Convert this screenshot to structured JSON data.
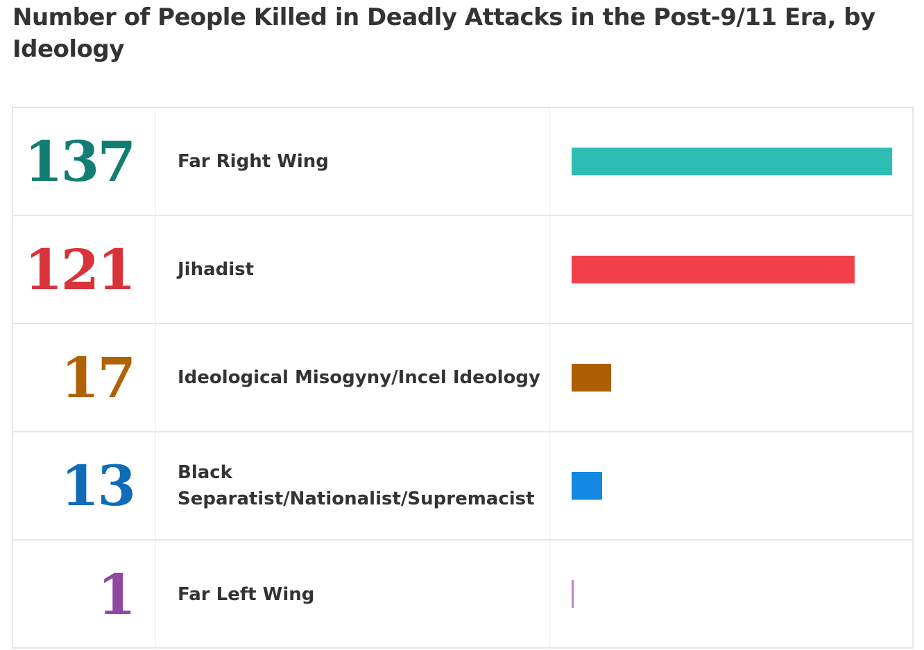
{
  "title": "Number of People Killed in Deadly Attacks in the Post-9/11 Era, by Ideology",
  "chart_data": {
    "type": "bar",
    "orientation": "horizontal",
    "title": "Number of People Killed in Deadly Attacks in the Post-9/11 Era, by Ideology",
    "categories": [
      "Far Right Wing",
      "Jihadist",
      "Ideological Misogyny/Incel Ideology",
      "Black Separatist/Nationalist/Supremacist",
      "Far Left Wing"
    ],
    "values": [
      137,
      121,
      17,
      13,
      1
    ],
    "xlim": [
      0,
      137
    ],
    "grid": false,
    "legend": "none"
  },
  "rows": [
    {
      "value": "137",
      "label": "Far Right Wing",
      "number_color": "#127d72",
      "bar_color": "#2dbdb3"
    },
    {
      "value": "121",
      "label": "Jihadist",
      "number_color": "#d9333a",
      "bar_color": "#f2404a"
    },
    {
      "value": "17",
      "label": "Ideological Misogyny/Incel Ideology",
      "number_color": "#b06206",
      "bar_color": "#ad5f05"
    },
    {
      "value": "13",
      "label": "Black Separatist/Nationalist/Supremacist",
      "number_color": "#0f6cb8",
      "bar_color": "#1288e0"
    },
    {
      "value": "1",
      "label": "Far Left Wing",
      "number_color": "#8e48a0",
      "bar_color": "#c084cc"
    }
  ]
}
